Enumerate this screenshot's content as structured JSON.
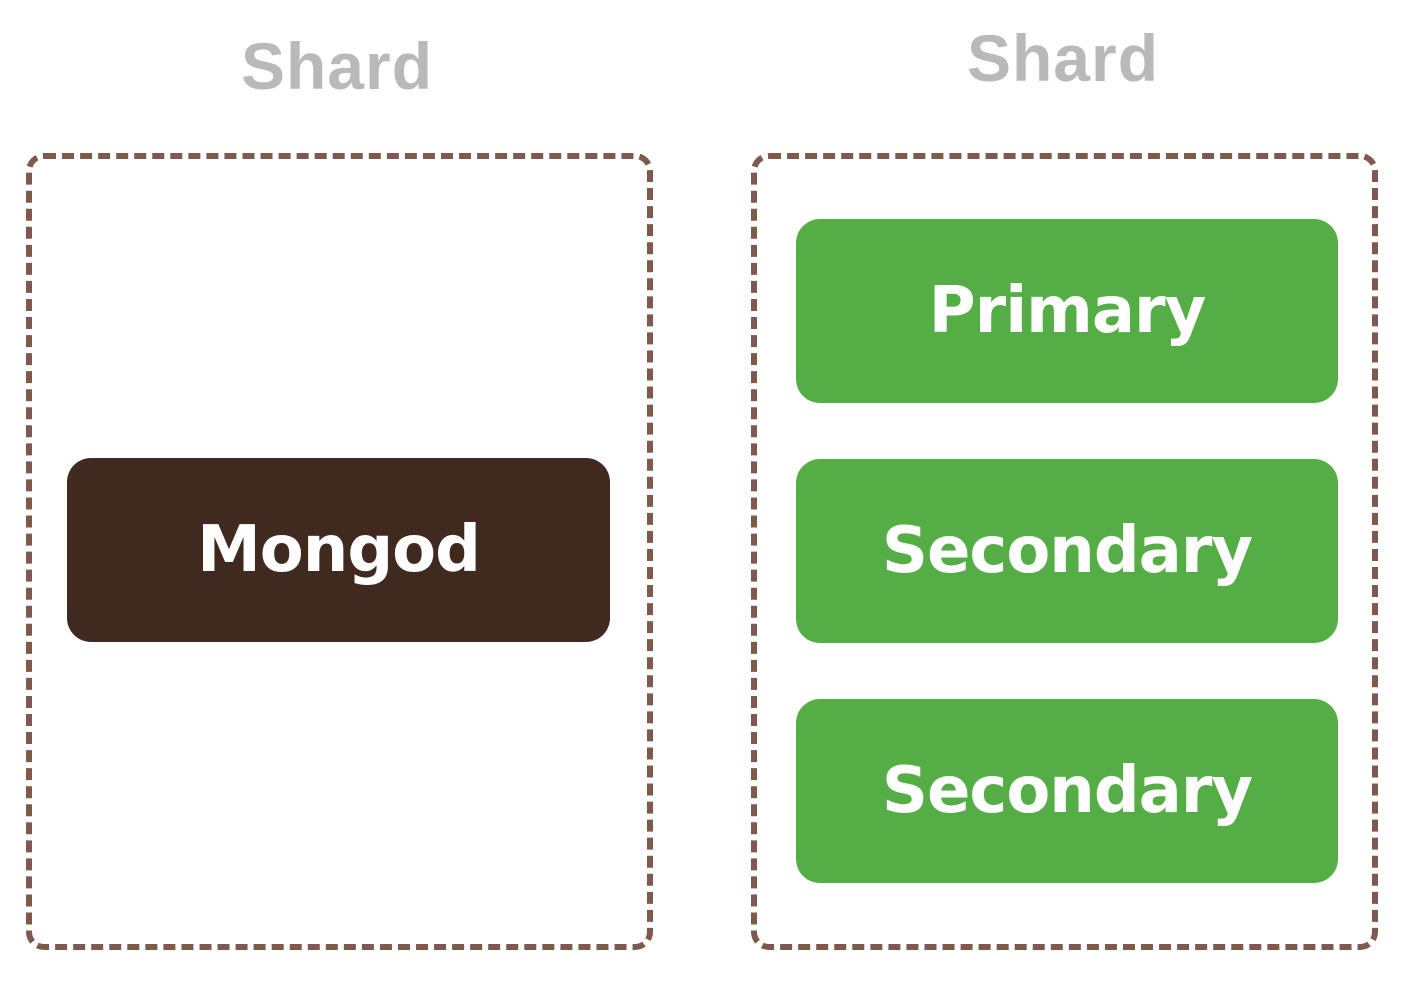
{
  "colors": {
    "title_gray": "#b9b9b9",
    "border_brown": "#7f5a4c",
    "mongod_dark_brown": "#40291e",
    "replica_green": "#54ae45",
    "text_white": "#ffffff"
  },
  "shards": [
    {
      "title": "Shard",
      "nodes": [
        {
          "label": "Mongod",
          "role": "standalone"
        }
      ]
    },
    {
      "title": "Shard",
      "nodes": [
        {
          "label": "Primary",
          "role": "primary"
        },
        {
          "label": "Secondary",
          "role": "secondary"
        },
        {
          "label": "Secondary",
          "role": "secondary"
        }
      ]
    }
  ]
}
